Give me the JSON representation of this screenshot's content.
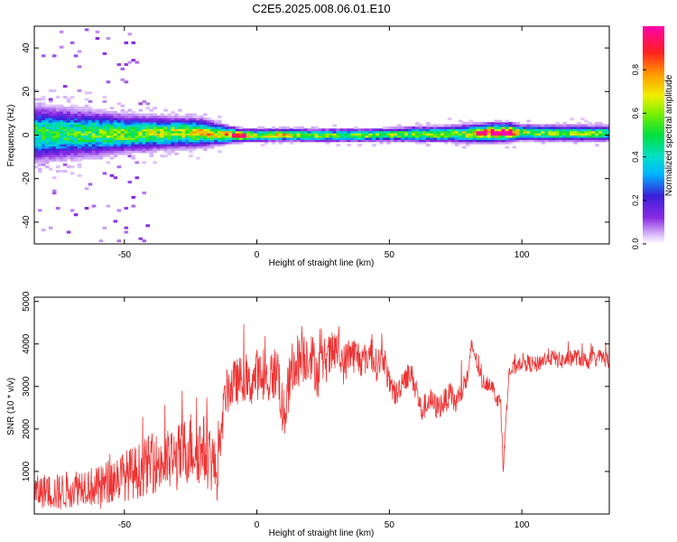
{
  "title": "C2E5.2025.008.06.01.E10",
  "colors": {
    "snr_line": "#ee3333",
    "axis": "#000000",
    "background": "#ffffff"
  },
  "chart_data": [
    {
      "type": "heatmap",
      "xlabel": "Height of straight line (km)",
      "ylabel": "Frequency (Hz)",
      "xlim": [
        -84,
        133
      ],
      "ylim": [
        -50,
        50
      ],
      "x_ticks": [
        -50,
        0,
        50,
        100
      ],
      "y_ticks": [
        -40,
        -20,
        0,
        20,
        40
      ],
      "x_tick_labels": [
        "-50",
        "0",
        "50",
        "100"
      ],
      "y_tick_labels": [
        "-40",
        "-20",
        "0",
        "20",
        "40"
      ],
      "grid": false,
      "colorbar": {
        "label": "Normalized spectral amplitude",
        "range": [
          0,
          1
        ],
        "colormap": "rainbow (purple-blue-cyan-green-yellow-red-magenta)",
        "ticks": [
          0.0,
          0.2,
          0.4,
          0.6,
          0.8
        ],
        "tick_labels": [
          "0.0",
          "0.2",
          "0.4",
          "0.6",
          "0.8"
        ]
      },
      "band_profile": {
        "x": [
          -84,
          -70,
          -60,
          -50,
          -40,
          -30,
          -20,
          -15,
          -10,
          -5,
          0,
          10,
          20,
          30,
          40,
          50,
          60,
          70,
          80,
          85,
          90,
          95,
          100,
          110,
          120,
          133
        ],
        "center_freq": [
          0.8,
          0.8,
          0.8,
          0.9,
          1.0,
          1.2,
          1.2,
          0.6,
          0.2,
          0.0,
          0.0,
          0.3,
          0.0,
          0.0,
          0.0,
          0.3,
          0.5,
          0.6,
          0.8,
          1.0,
          1.3,
          1.5,
          1.3,
          1.0,
          1.0,
          0.9
        ],
        "half_width": [
          9,
          8,
          7,
          6,
          5.5,
          5,
          4.5,
          3.5,
          2.5,
          2,
          2,
          2,
          2,
          2,
          2,
          2,
          2.5,
          2.5,
          3,
          3,
          3,
          3,
          2.5,
          2.5,
          2.5,
          2.5
        ],
        "peak_amplitude": [
          0.5,
          0.5,
          0.55,
          0.6,
          0.6,
          0.65,
          0.7,
          0.7,
          0.9,
          0.95,
          0.65,
          0.75,
          0.6,
          0.6,
          0.6,
          0.6,
          0.6,
          0.6,
          0.65,
          0.9,
          0.98,
          0.98,
          0.6,
          0.6,
          0.6,
          0.55
        ]
      }
    },
    {
      "type": "line",
      "xlabel": "Height of straight line (km)",
      "ylabel": "SNR (10 * v/v)",
      "xlim": [
        -84,
        133
      ],
      "ylim": [
        0,
        5100
      ],
      "x_ticks": [
        -50,
        0,
        50,
        100
      ],
      "y_ticks": [
        1000,
        2000,
        3000,
        4000,
        5000
      ],
      "x_tick_labels": [
        "-50",
        "0",
        "50",
        "100"
      ],
      "y_tick_labels": [
        "1000",
        "2000",
        "3000",
        "4000",
        "5000"
      ],
      "grid": false,
      "series": [
        {
          "x": [
            -84,
            -80,
            -75,
            -70,
            -65,
            -60,
            -55,
            -50,
            -45,
            -40,
            -35,
            -30,
            -25,
            -20,
            -17,
            -15,
            -12,
            -10,
            -8,
            -5,
            -3,
            0,
            3,
            5,
            8,
            10,
            12,
            15,
            18,
            20,
            23,
            25,
            28,
            30,
            33,
            35,
            38,
            40,
            43,
            45,
            48,
            50,
            53,
            55,
            58,
            60,
            62,
            65,
            68,
            70,
            73,
            75,
            78,
            80,
            81,
            82,
            85,
            88,
            90,
            92,
            93,
            95,
            98,
            100,
            105,
            110,
            115,
            120,
            125,
            130,
            133
          ],
          "values": [
            500,
            550,
            500,
            600,
            700,
            600,
            800,
            900,
            1000,
            1200,
            1200,
            1300,
            1600,
            1500,
            1300,
            900,
            2800,
            3000,
            3100,
            3200,
            3000,
            3300,
            3100,
            3200,
            3400,
            2200,
            3000,
            3600,
            3700,
            3800,
            3300,
            3600,
            3700,
            3900,
            3500,
            3800,
            3700,
            3600,
            3800,
            3500,
            3700,
            3000,
            2800,
            3200,
            3300,
            3000,
            2400,
            2700,
            2500,
            2600,
            2800,
            2600,
            3000,
            3300,
            4000,
            3800,
            3100,
            3100,
            2800,
            2600,
            1100,
            3300,
            3500,
            3600,
            3500,
            3700,
            3600,
            3700,
            3600,
            3700,
            3600
          ],
          "jitter": [
            400,
            400,
            450,
            450,
            450,
            500,
            550,
            600,
            650,
            700,
            750,
            800,
            850,
            850,
            800,
            600,
            500,
            600,
            550,
            550,
            550,
            600,
            600,
            650,
            650,
            700,
            650,
            650,
            650,
            600,
            600,
            550,
            550,
            500,
            500,
            450,
            450,
            400,
            400,
            400,
            350,
            350,
            300,
            300,
            300,
            300,
            300,
            300,
            300,
            300,
            300,
            300,
            300,
            250,
            200,
            200,
            200,
            200,
            200,
            200,
            200,
            200,
            200,
            200,
            200,
            200,
            200,
            200,
            200,
            200,
            200
          ]
        }
      ]
    }
  ]
}
